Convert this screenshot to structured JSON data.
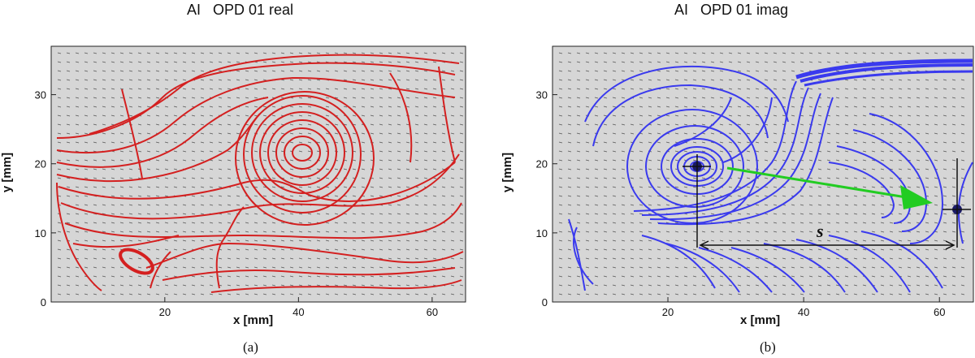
{
  "panel_a": {
    "title": "AI   OPD 01 real",
    "xlabel": "x [mm]",
    "ylabel": "y [mm]",
    "caption": "(a)",
    "line_color": "#d42020"
  },
  "panel_b": {
    "title": "AI   OPD 01 imag",
    "xlabel": "x [mm]",
    "ylabel": "y [mm]",
    "caption": "(b)",
    "line_color": "#3a3aee",
    "arrow_color": "#22cc22",
    "distance_label": "s"
  },
  "axes": {
    "x_ticks": [
      20,
      40,
      60
    ],
    "y_ticks": [
      0,
      10,
      20,
      30
    ],
    "x_range": [
      3,
      65
    ],
    "y_range": [
      0,
      37
    ],
    "background": "#d6d6d6"
  }
}
